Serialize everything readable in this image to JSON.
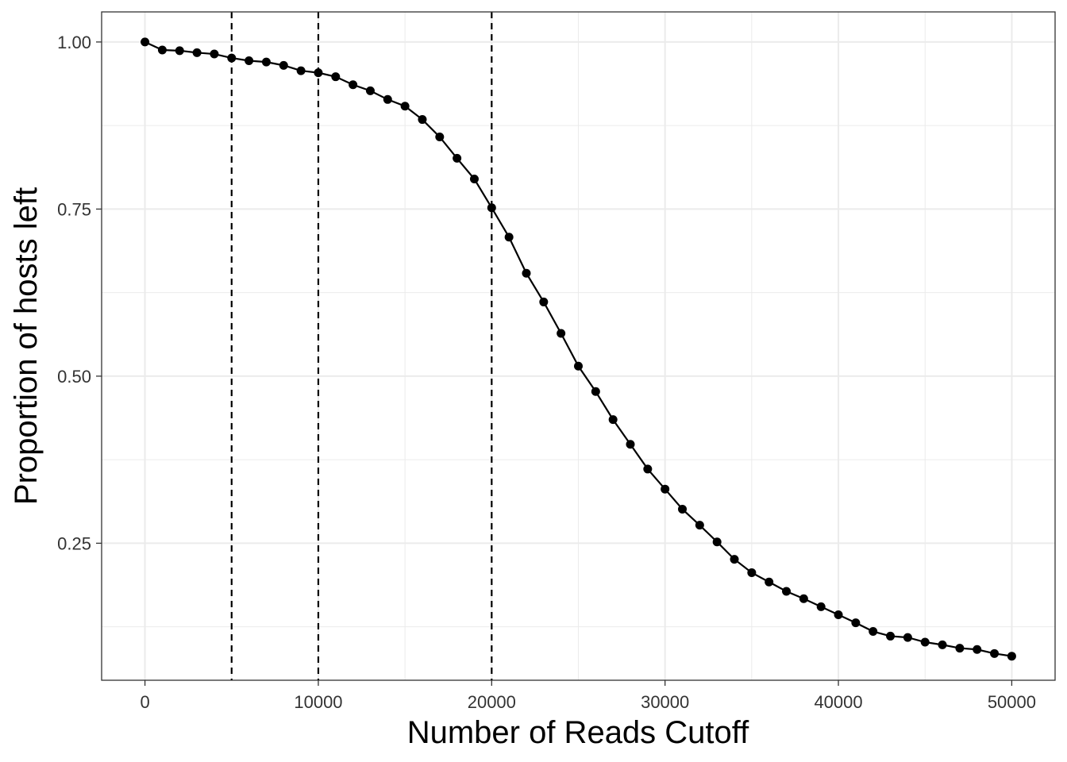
{
  "chart_data": {
    "type": "line",
    "title": "",
    "xlabel": "Number of Reads Cutoff",
    "ylabel": "Proportion of hosts left",
    "xlim": [
      -2500,
      52500
    ],
    "ylim": [
      0.045,
      1.045
    ],
    "x_ticks": [
      0,
      10000,
      20000,
      30000,
      40000,
      50000
    ],
    "x_tick_labels": [
      "0",
      "10000",
      "20000",
      "30000",
      "40000",
      "50000"
    ],
    "y_ticks": [
      0.25,
      0.5,
      0.75,
      1.0
    ],
    "y_tick_labels": [
      "0.25",
      "0.50",
      "0.75",
      "1.00"
    ],
    "grid": true,
    "legend": "none",
    "vlines": [
      5000,
      10000,
      20000
    ],
    "series": [
      {
        "color": "#000000",
        "x": [
          0,
          1000,
          2000,
          3000,
          4000,
          5000,
          6000,
          7000,
          8000,
          9000,
          10000,
          11000,
          12000,
          13000,
          14000,
          15000,
          16000,
          17000,
          18000,
          19000,
          20000,
          21000,
          22000,
          23000,
          24000,
          25000,
          26000,
          27000,
          28000,
          29000,
          30000,
          31000,
          32000,
          33000,
          34000,
          35000,
          36000,
          37000,
          38000,
          39000,
          40000,
          41000,
          42000,
          43000,
          44000,
          45000,
          46000,
          47000,
          48000,
          49000,
          50000
        ],
        "y": [
          1.0,
          0.988,
          0.987,
          0.984,
          0.982,
          0.976,
          0.972,
          0.97,
          0.965,
          0.957,
          0.954,
          0.948,
          0.936,
          0.927,
          0.914,
          0.904,
          0.884,
          0.858,
          0.826,
          0.795,
          0.752,
          0.708,
          0.654,
          0.611,
          0.564,
          0.515,
          0.477,
          0.435,
          0.398,
          0.361,
          0.331,
          0.301,
          0.277,
          0.252,
          0.226,
          0.206,
          0.192,
          0.178,
          0.167,
          0.155,
          0.143,
          0.131,
          0.118,
          0.111,
          0.109,
          0.102,
          0.098,
          0.093,
          0.091,
          0.085,
          0.081
        ]
      }
    ]
  }
}
